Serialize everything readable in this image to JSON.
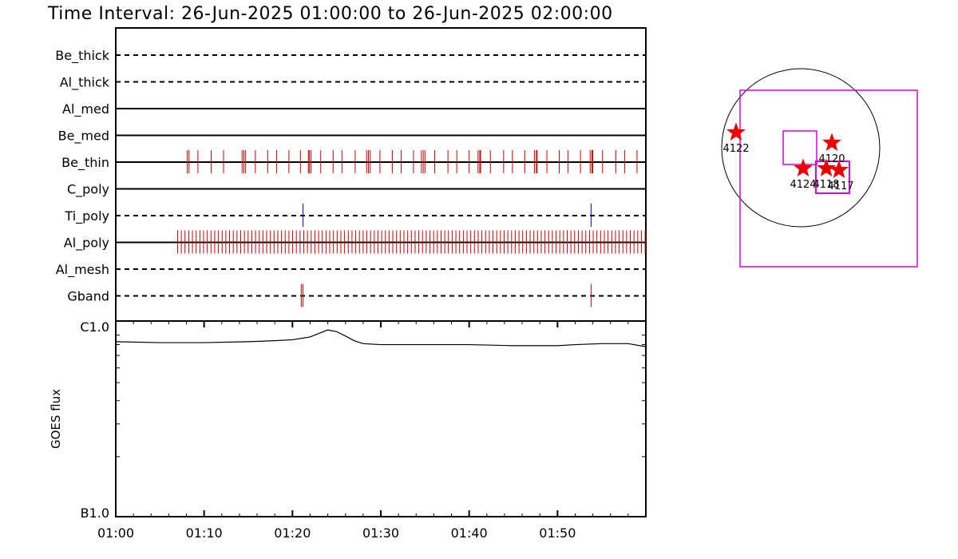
{
  "title": "Time Interval: 26-Jun-2025 01:00:00 to 26-Jun-2025 02:00:00",
  "chart_data": [
    {
      "type": "timeline",
      "x_range_min": [
        0,
        60
      ],
      "filters": [
        {
          "name": "Be_thick",
          "style": "dashed",
          "ticks": [],
          "tick_color": "#d00000"
        },
        {
          "name": "Al_thick",
          "style": "dashed",
          "ticks": [],
          "tick_color": "#d00000"
        },
        {
          "name": "Al_med",
          "style": "solid",
          "ticks": [],
          "tick_color": "#d00000"
        },
        {
          "name": "Be_med",
          "style": "solid",
          "ticks": [],
          "tick_color": "#d00000"
        },
        {
          "name": "Be_thin",
          "style": "solid",
          "tick_color": "#d00000",
          "ticks": [
            8.1,
            8.3,
            9.3,
            10.8,
            12.2,
            14.3,
            14.5,
            14.7,
            15.8,
            17.2,
            18.2,
            19.6,
            20.9,
            21.8,
            21.9,
            22.1,
            23.2,
            24.6,
            25.6,
            27.1,
            28.4,
            28.6,
            28.8,
            29.9,
            31.3,
            32.3,
            33.7,
            34.6,
            34.8,
            35.0,
            36.1,
            37.6,
            38.6,
            40.0,
            41.0,
            41.2,
            41.3,
            42.4,
            43.9,
            44.9,
            46.3,
            47.4,
            47.6,
            47.7,
            48.8,
            50.2,
            51.2,
            52.6,
            53.7,
            53.9,
            54.0,
            55.1,
            56.6,
            57.6,
            59.0
          ]
        },
        {
          "name": "C_poly",
          "style": "solid",
          "ticks": [],
          "tick_color": "#d00000"
        },
        {
          "name": "Ti_poly",
          "style": "dashed",
          "tick_color": "#0000cc",
          "ticks": [
            21.2,
            53.8
          ]
        },
        {
          "name": "Al_poly",
          "style": "solid",
          "tick_color": "#d00000",
          "density_start": 7.0,
          "density_end": 60.0,
          "density_step": 0.42
        },
        {
          "name": "Al_mesh",
          "style": "dashed",
          "ticks": [],
          "tick_color": "#d00000"
        },
        {
          "name": "Gband",
          "style": "dashed",
          "tick_color": "#d00000",
          "ticks": [
            21.0,
            21.2,
            53.8
          ]
        }
      ]
    },
    {
      "type": "line",
      "ylabel": "GOES flux",
      "y_scale": "log",
      "y_ticks": [
        "C1.0",
        "B1.0"
      ],
      "y_range": [
        1e-07,
        1e-06
      ],
      "x_ticks": [
        "01:00",
        "01:10",
        "01:20",
        "01:30",
        "01:40",
        "01:50"
      ],
      "x_tick_values_min": [
        0,
        10,
        20,
        30,
        40,
        50
      ],
      "series": [
        {
          "color": "#000000",
          "x_min": [
            0,
            5,
            10,
            15,
            18,
            20,
            22,
            23,
            24,
            25,
            26,
            27,
            28,
            30,
            35,
            40,
            45,
            50,
            52,
            55,
            58,
            60
          ],
          "y": [
            8.3e-07,
            8.2e-07,
            8.2e-07,
            8.3e-07,
            8.4e-07,
            8.5e-07,
            8.8e-07,
            9.2e-07,
            9.6e-07,
            9.4e-07,
            8.9e-07,
            8.4e-07,
            8.1e-07,
            8e-07,
            8e-07,
            8e-07,
            7.9e-07,
            7.9e-07,
            8e-07,
            8.1e-07,
            8.1e-07,
            7.8e-07
          ]
        }
      ]
    },
    {
      "type": "map",
      "regions": [
        "4122",
        "4120",
        "4124",
        "4118",
        "4117"
      ]
    }
  ]
}
